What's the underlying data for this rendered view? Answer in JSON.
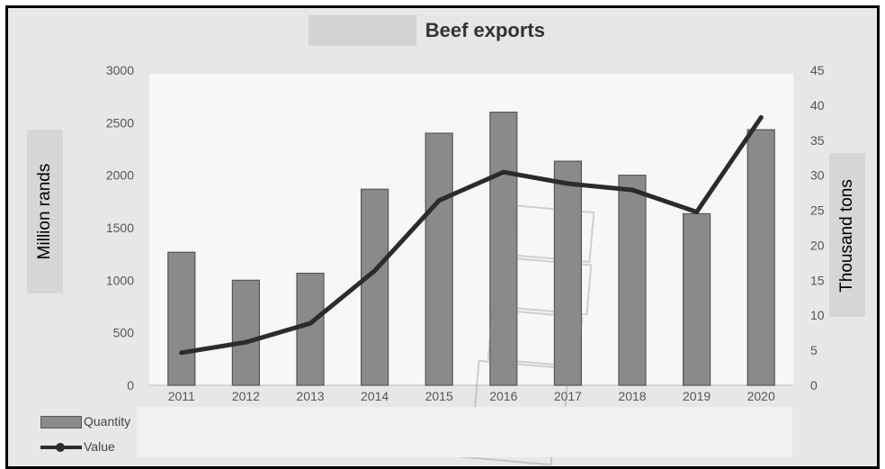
{
  "chart_data": {
    "type": "bar",
    "title": "Beef exports",
    "categories": [
      "2011",
      "2012",
      "2013",
      "2014",
      "2015",
      "2016",
      "2017",
      "2018",
      "2019",
      "2020"
    ],
    "series": [
      {
        "name": "Quantity",
        "type": "bar",
        "axis": "right",
        "values": [
          19.0,
          15.0,
          16.0,
          28.0,
          36.0,
          39.0,
          32.0,
          30.0,
          24.5,
          36.5
        ]
      },
      {
        "name": "Value",
        "type": "line",
        "axis": "left",
        "values": [
          310,
          410,
          590,
          1090,
          1760,
          2030,
          1920,
          1860,
          1650,
          2550
        ]
      }
    ],
    "y_left": {
      "label": "Million rands",
      "ylim": [
        0,
        3000
      ],
      "ticks": [
        "0",
        "500",
        "1000",
        "1500",
        "2000",
        "2500",
        "3000"
      ]
    },
    "y_right": {
      "label": "Thousand tons",
      "ylim": [
        0,
        45
      ],
      "ticks": [
        "0",
        "5",
        "10",
        "15",
        "20",
        "25",
        "30",
        "35",
        "40",
        "45"
      ]
    },
    "grid": false,
    "legend_position": "bottom-left",
    "colors": {
      "bar": "#8a8a8a",
      "line": "#2b2b2b"
    }
  }
}
